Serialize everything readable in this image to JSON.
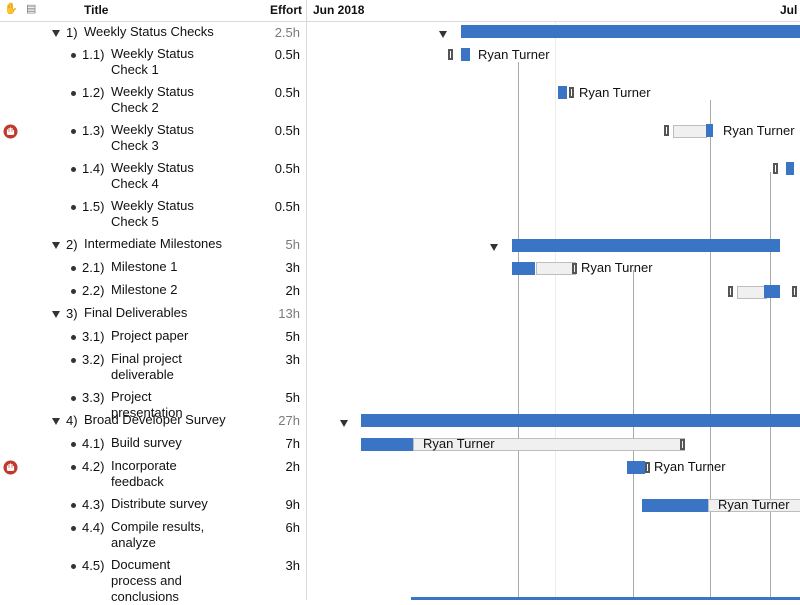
{
  "header": {
    "title_col": "Title",
    "effort_col": "Effort",
    "date_left": "Jun 2018",
    "date_right": "Jul"
  },
  "rows": [
    {
      "num": "1)",
      "title": "Weekly Status Checks",
      "effort": "2.5h",
      "group": true
    },
    {
      "num": "1.1)",
      "title": "Weekly Status Check 1",
      "effort": "0.5h"
    },
    {
      "num": "1.2)",
      "title": "Weekly Status Check 2",
      "effort": "0.5h"
    },
    {
      "num": "1.3)",
      "title": "Weekly Status Check 3",
      "effort": "0.5h",
      "flag": true
    },
    {
      "num": "1.4)",
      "title": "Weekly Status Check 4",
      "effort": "0.5h"
    },
    {
      "num": "1.5)",
      "title": "Weekly Status Check 5",
      "effort": "0.5h"
    },
    {
      "num": "2)",
      "title": "Intermediate Milestones",
      "effort": "5h",
      "group": true
    },
    {
      "num": "2.1)",
      "title": "Milestone 1",
      "effort": "3h"
    },
    {
      "num": "2.2)",
      "title": "Milestone 2",
      "effort": "2h"
    },
    {
      "num": "3)",
      "title": "Final Deliverables",
      "effort": "13h",
      "group": true
    },
    {
      "num": "3.1)",
      "title": "Project paper",
      "effort": "5h"
    },
    {
      "num": "3.2)",
      "title": "Final project deliverable",
      "effort": "3h"
    },
    {
      "num": "3.3)",
      "title": "Project presentation",
      "effort": "5h"
    },
    {
      "num": "4)",
      "title": "Broad Developer Survey",
      "effort": "27h",
      "group": true
    },
    {
      "num": "4.1)",
      "title": "Build survey",
      "effort": "7h"
    },
    {
      "num": "4.2)",
      "title": "Incorporate feedback",
      "effort": "2h",
      "flag": true
    },
    {
      "num": "4.3)",
      "title": "Distribute survey",
      "effort": "9h"
    },
    {
      "num": "4.4)",
      "title": "Compile results, analyze",
      "effort": "6h"
    },
    {
      "num": "4.5)",
      "title": "Document process and conclusions",
      "effort": "3h"
    }
  ],
  "assignee": "Ryan Turner",
  "colors": {
    "bar": "#3a74c4",
    "flag": "#c0392b"
  }
}
